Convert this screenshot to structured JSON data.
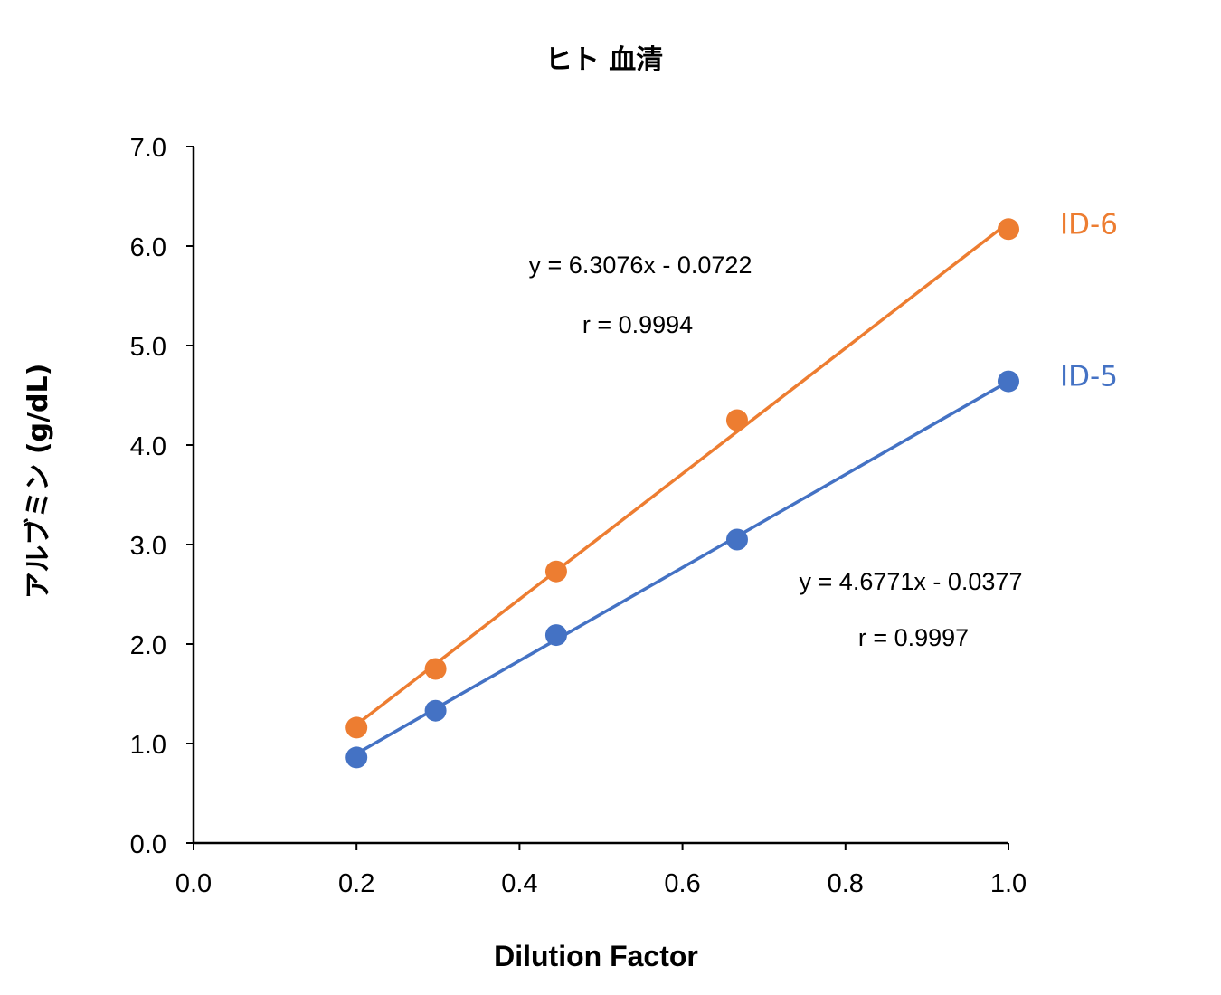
{
  "chart_data": {
    "type": "scatter",
    "title": "ヒト 血清",
    "xlabel": "Dilution Factor",
    "ylabel": "アルブミン (g/dL)",
    "xlim": [
      0,
      1.0
    ],
    "ylim": [
      0,
      7.0
    ],
    "x_ticks": [
      "0.0",
      "0.2",
      "0.4",
      "0.6",
      "0.8",
      "1.0"
    ],
    "y_ticks": [
      "0.0",
      "1.0",
      "2.0",
      "3.0",
      "4.0",
      "5.0",
      "6.0",
      "7.0"
    ],
    "legend": "inline labels at end of series lines",
    "series": [
      {
        "name": "ID-6",
        "color": "#ED7D31",
        "x": [
          0.2,
          0.297,
          0.445,
          0.667,
          1.0
        ],
        "y": [
          1.16,
          1.75,
          2.73,
          4.25,
          6.17
        ],
        "trendline": {
          "slope": 6.3076,
          "intercept": -0.0722
        },
        "equation": "y = 6.3076x - 0.0722",
        "r": "r = 0.9994"
      },
      {
        "name": "ID-5",
        "color": "#4472C4",
        "x": [
          0.2,
          0.297,
          0.445,
          0.667,
          1.0
        ],
        "y": [
          0.86,
          1.33,
          2.09,
          3.05,
          4.64
        ],
        "trendline": {
          "slope": 4.6771,
          "intercept": -0.0377
        },
        "equation": "y = 4.6771x - 0.0377",
        "r": "r = 0.9997"
      }
    ]
  }
}
